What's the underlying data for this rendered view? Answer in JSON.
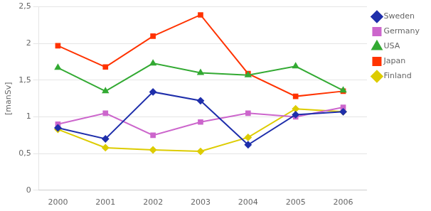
{
  "chart_data": {
    "type": "line",
    "x": [
      2000,
      2001,
      2002,
      2003,
      2004,
      2005,
      2006
    ],
    "series": [
      {
        "name": "Sweden",
        "color": "#1F2FAB",
        "marker": "diamond",
        "values": [
          0.85,
          0.7,
          1.34,
          1.22,
          0.62,
          1.03,
          1.07
        ]
      },
      {
        "name": "Germany",
        "color": "#CC66CC",
        "marker": "square",
        "values": [
          0.9,
          1.05,
          0.75,
          0.93,
          1.05,
          1.0,
          1.13
        ]
      },
      {
        "name": "USA",
        "color": "#33AA33",
        "marker": "triangle",
        "values": [
          1.67,
          1.35,
          1.73,
          1.6,
          1.57,
          1.69,
          1.36
        ]
      },
      {
        "name": "Japan",
        "color": "#FF3300",
        "marker": "square",
        "values": [
          1.97,
          1.68,
          2.1,
          2.39,
          1.59,
          1.28,
          1.35
        ]
      },
      {
        "name": "Finland",
        "color": "#DDCC00",
        "marker": "diamond",
        "values": [
          0.83,
          0.58,
          0.55,
          0.53,
          0.72,
          1.11,
          1.07
        ]
      }
    ],
    "y_label": "[manSv]",
    "xlim": [
      1999.6,
      2006.5
    ],
    "xticks": [
      2000,
      2001,
      2002,
      2003,
      2004,
      2005,
      2006
    ],
    "ylim": [
      0,
      2.5
    ],
    "yticks": [
      0,
      {
        "value": 0.5,
        "label": "0,5"
      },
      1,
      {
        "value": 1.5,
        "label": "1,5"
      },
      2,
      {
        "value": 2.5,
        "label": "2,5"
      }
    ],
    "grid": "y",
    "legend": "right"
  }
}
